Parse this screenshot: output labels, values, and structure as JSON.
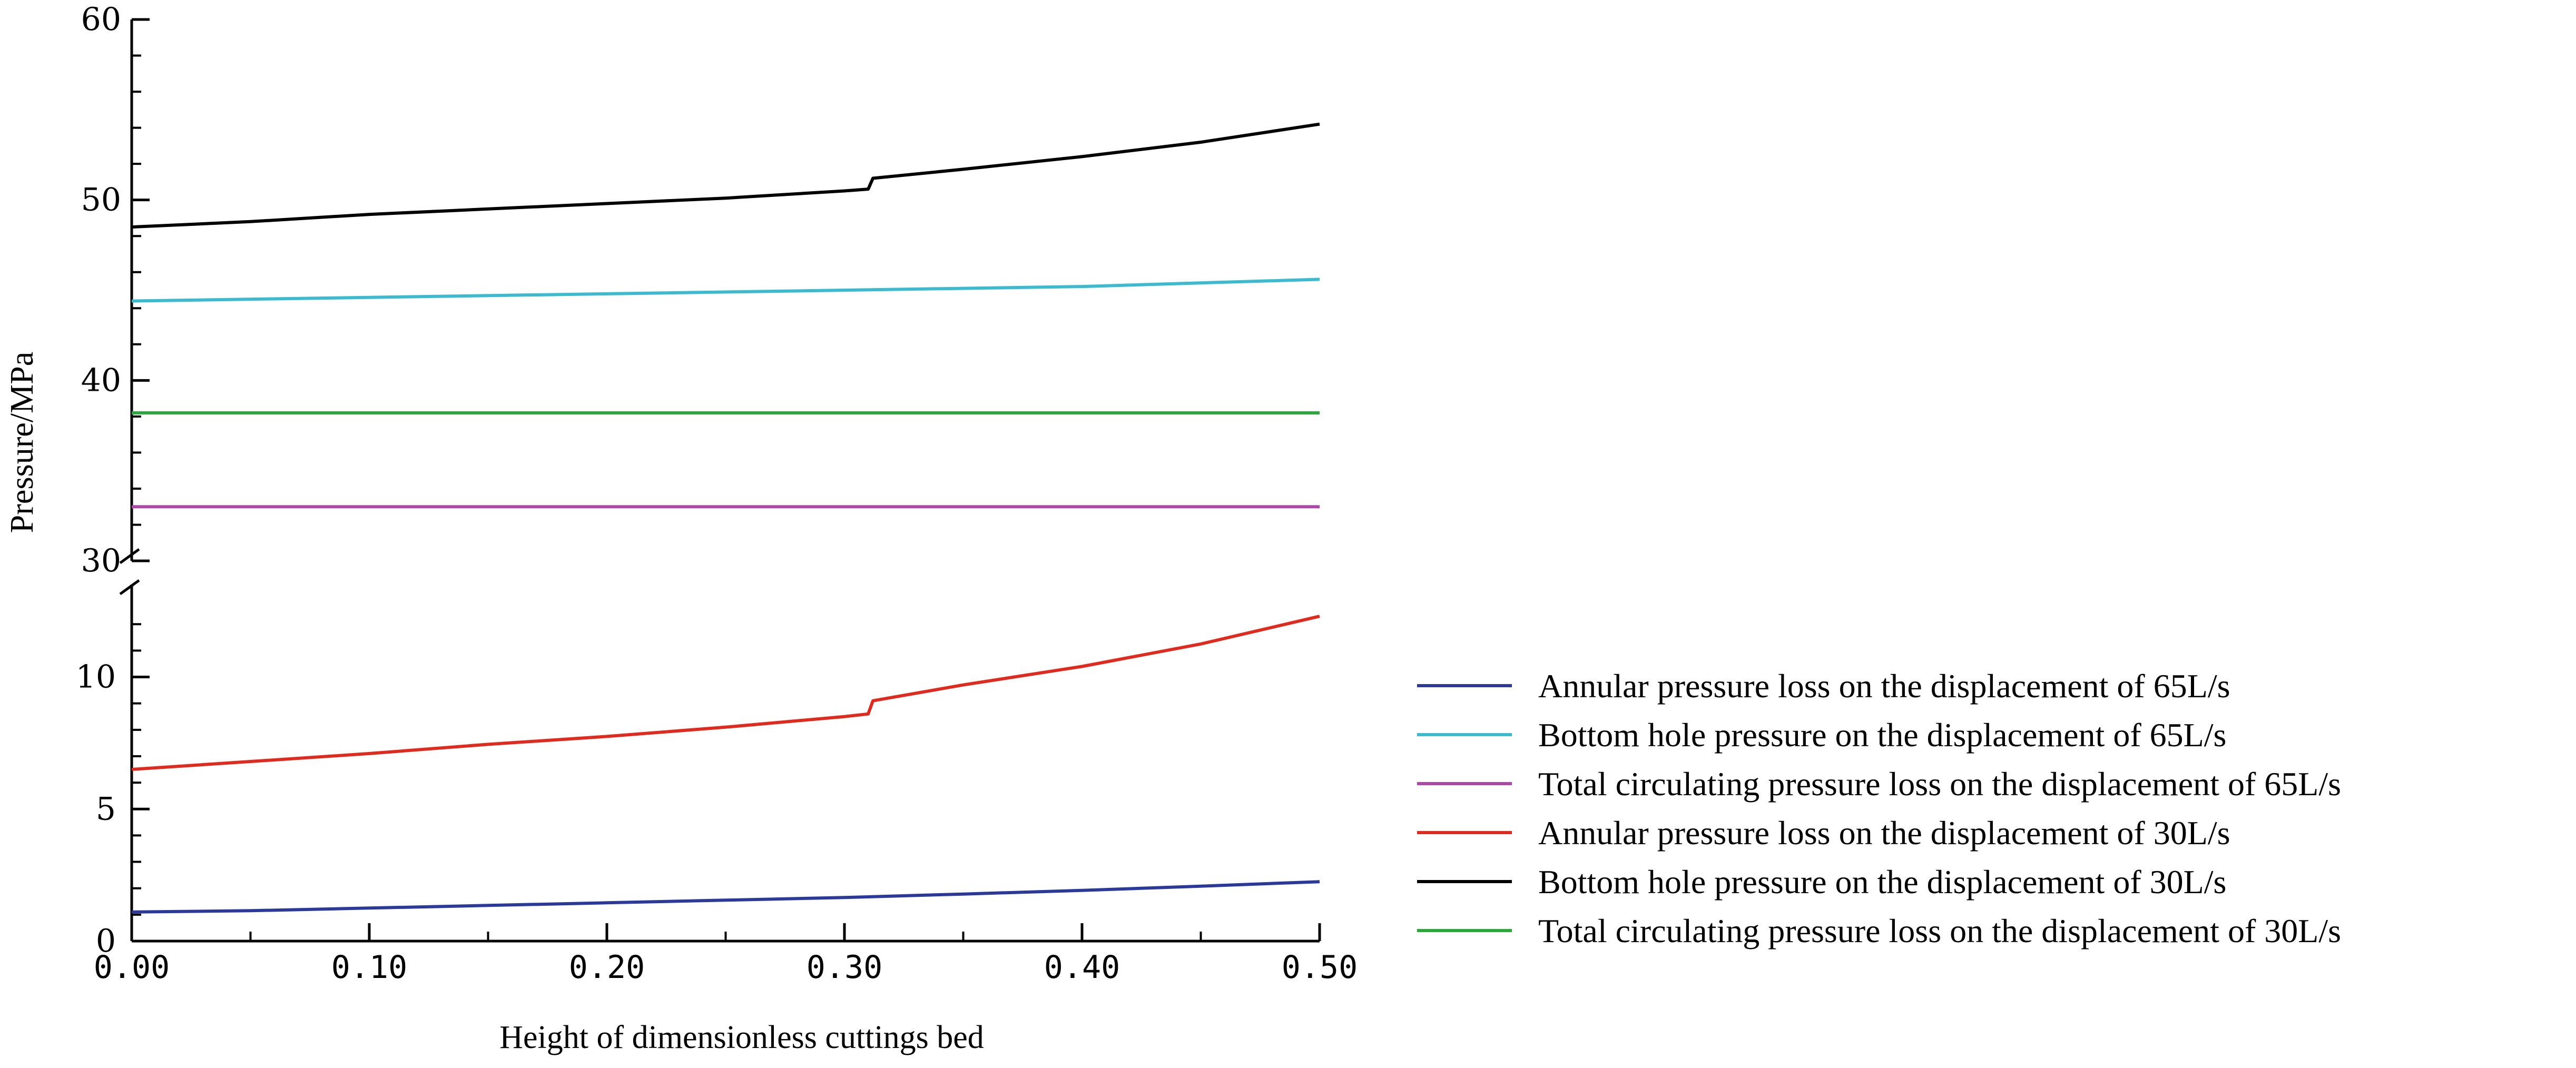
{
  "chart_data": {
    "type": "line",
    "title": "",
    "xlabel": "Height of dimensionless cuttings bed",
    "ylabel": "Pressure/MPa",
    "xlim": [
      0,
      0.5
    ],
    "ylim": [
      0,
      60
    ],
    "y_axis_break": {
      "from": 13.5,
      "to": 30
    },
    "x_ticks": [
      0,
      0.1,
      0.2,
      0.3,
      0.4,
      0.5
    ],
    "x_tick_labels": [
      "0.00",
      "0.10",
      "0.20",
      "0.30",
      "0.40",
      "0.50"
    ],
    "y_ticks_lower": [
      0,
      5,
      10
    ],
    "y_tick_labels_lower": [
      "0",
      "5",
      "10"
    ],
    "y_ticks_upper": [
      30,
      40,
      50,
      60
    ],
    "y_tick_labels_upper": [
      "30",
      "40",
      "50",
      "60"
    ],
    "grid": false,
    "legend_position": "right",
    "series": [
      {
        "name": "Annular pressure loss on the displacement of 65L/s",
        "color": "#2b3a9a",
        "x": [
          0,
          0.05,
          0.1,
          0.15,
          0.2,
          0.25,
          0.3,
          0.35,
          0.4,
          0.45,
          0.5
        ],
        "y": [
          1.1,
          1.15,
          1.25,
          1.35,
          1.45,
          1.55,
          1.65,
          1.78,
          1.92,
          2.08,
          2.25
        ]
      },
      {
        "name": "Bottom hole pressure on the displacement of 65L/s",
        "color": "#3bbad0",
        "x": [
          0,
          0.1,
          0.2,
          0.3,
          0.4,
          0.5
        ],
        "y": [
          44.4,
          44.6,
          44.8,
          45.0,
          45.2,
          45.6
        ]
      },
      {
        "name": "Total circulating pressure loss on the displacement of 65L/s",
        "color": "#b046a8",
        "x": [
          0,
          0.5
        ],
        "y": [
          33.0,
          33.0
        ]
      },
      {
        "name": "Annular pressure loss on the displacement of 30L/s",
        "color": "#e02a1e",
        "x": [
          0,
          0.05,
          0.1,
          0.15,
          0.2,
          0.25,
          0.3,
          0.31,
          0.312,
          0.35,
          0.4,
          0.45,
          0.5
        ],
        "y": [
          6.5,
          6.8,
          7.1,
          7.45,
          7.75,
          8.1,
          8.5,
          8.6,
          9.1,
          9.7,
          10.4,
          11.25,
          12.3
        ]
      },
      {
        "name": "Bottom hole pressure on the displacement of 30L/s",
        "color": "#000000",
        "x": [
          0,
          0.05,
          0.1,
          0.15,
          0.2,
          0.25,
          0.3,
          0.31,
          0.312,
          0.35,
          0.4,
          0.45,
          0.5
        ],
        "y": [
          48.5,
          48.8,
          49.2,
          49.5,
          49.8,
          50.1,
          50.5,
          50.6,
          51.2,
          51.7,
          52.4,
          53.2,
          54.2
        ]
      },
      {
        "name": "Total circulating pressure loss on the displacement of 30L/s",
        "color": "#2aa83a",
        "x": [
          0,
          0.5
        ],
        "y": [
          38.2,
          38.2
        ]
      }
    ]
  }
}
